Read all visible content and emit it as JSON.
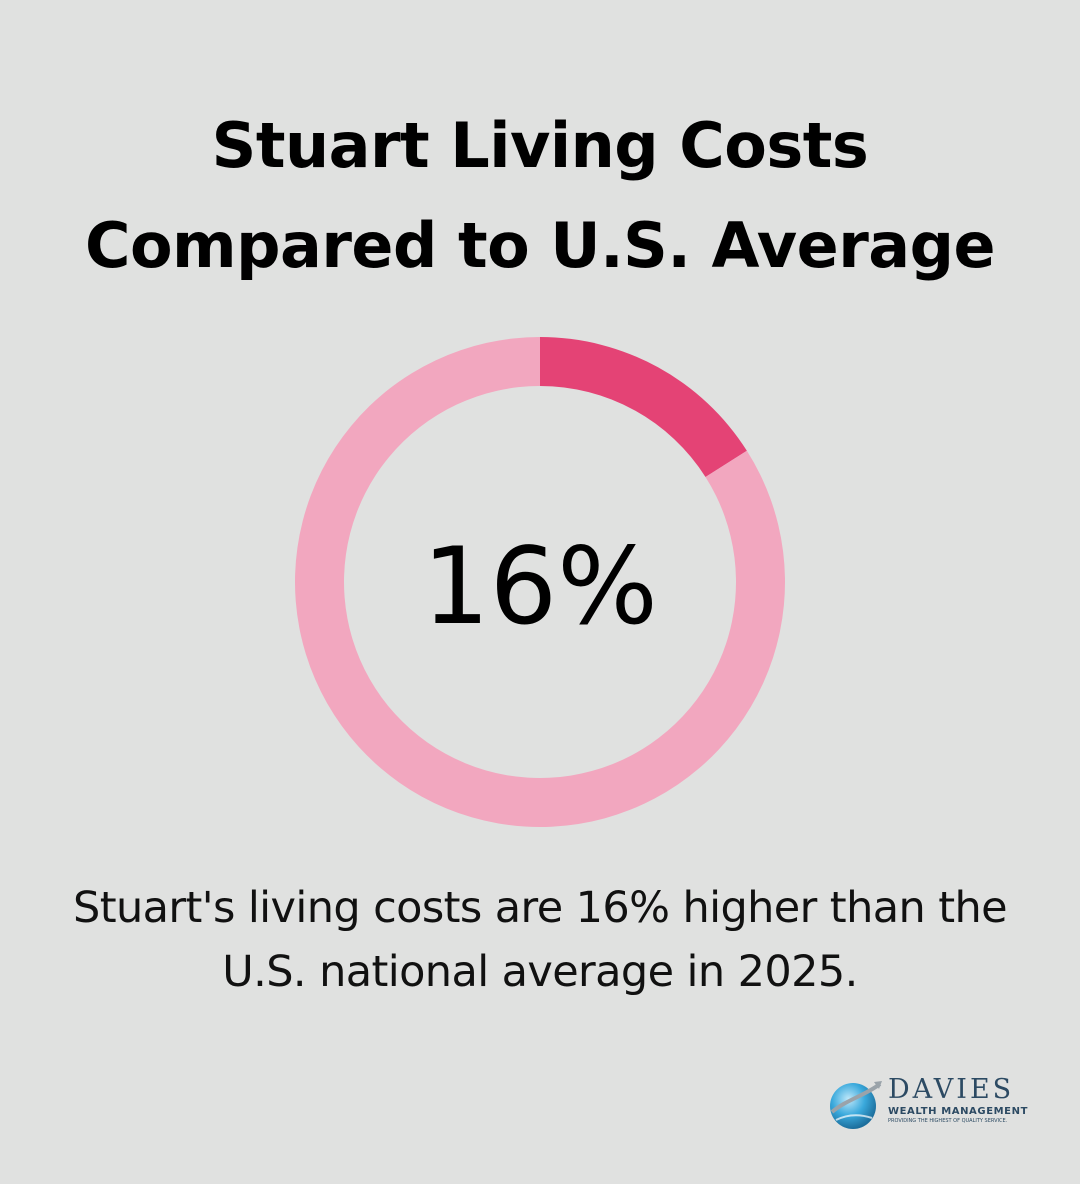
{
  "chart_data": {
    "type": "pie",
    "variant": "donut",
    "title": [
      "Stuart Living Costs",
      "Compared to U.S. Average"
    ],
    "center_label": "16%",
    "slices": [
      {
        "value": 16,
        "color": "#e44375"
      },
      {
        "value": 84,
        "color": "#f2a7bf"
      }
    ],
    "description": [
      "Stuart's living costs are 16% higher than the",
      "U.S. national average in 2025."
    ]
  },
  "colors": {
    "background": "#e0e1e0",
    "highlight": "#e44375",
    "remainder": "#f2a7bf",
    "logo_text": "#2c4a63",
    "logo_globe": "#3aa9dc"
  },
  "logo": {
    "name": "DAVIES",
    "subtitle": "WEALTH MANAGEMENT",
    "tagline": "PROVIDING THE HIGHEST OF QUALITY SERVICE.",
    "icon": "globe-icon"
  }
}
